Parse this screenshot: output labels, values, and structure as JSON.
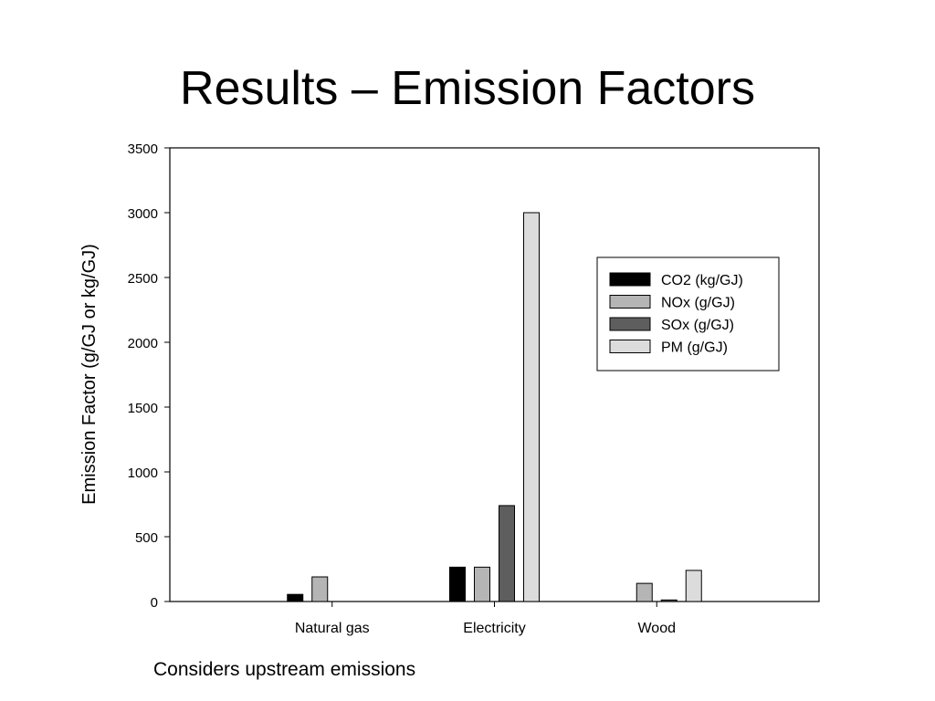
{
  "slide": {
    "title": "Results – Emission Factors",
    "footnote": "Considers upstream emissions"
  },
  "chart_data": {
    "type": "bar",
    "categories": [
      "Natural gas",
      "Electricity",
      "Wood"
    ],
    "series": [
      {
        "name": "CO2 (kg/GJ)",
        "values": [
          55,
          265,
          0
        ],
        "color": "#000000"
      },
      {
        "name": "NOx (g/GJ)",
        "values": [
          190,
          265,
          140
        ],
        "color": "#b5b5b5"
      },
      {
        "name": "SOx (g/GJ)",
        "values": [
          0,
          740,
          12
        ],
        "color": "#5e5e5e"
      },
      {
        "name": "PM (g/GJ)",
        "values": [
          0,
          3000,
          240
        ],
        "color": "#dcdcdc"
      }
    ],
    "ylabel": "Emission Factor (g/GJ or kg/GJ)",
    "xlabel": "",
    "ylim": [
      0,
      3500
    ],
    "yticks": [
      0,
      500,
      1000,
      1500,
      2000,
      2500,
      3000,
      3500
    ],
    "grid": false,
    "legend_position": "top-right"
  }
}
